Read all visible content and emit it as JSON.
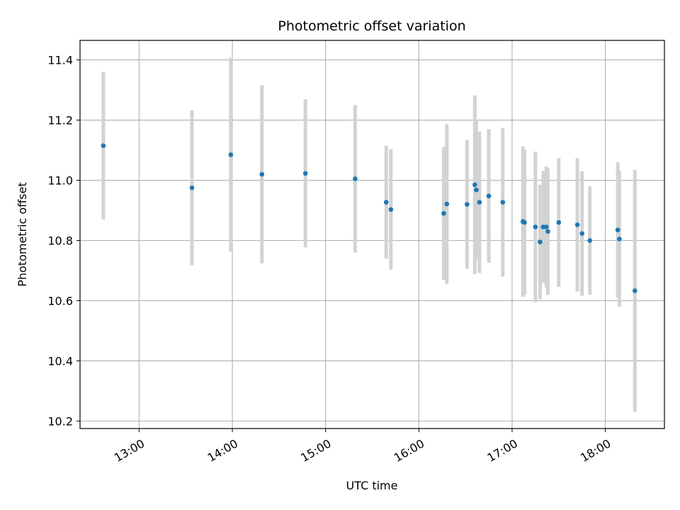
{
  "chart_data": {
    "type": "scatter",
    "title": "Photometric offset variation",
    "xlabel": "UTC time",
    "ylabel": "Photometric offset",
    "xlim": [
      "12:22",
      "18:38"
    ],
    "ylim": [
      10.175,
      11.465
    ],
    "x_ticks": [
      "13:00",
      "14:00",
      "15:00",
      "16:00",
      "17:00",
      "18:00"
    ],
    "y_ticks": [
      10.2,
      10.4,
      10.6,
      10.8,
      11.0,
      11.2,
      11.4
    ],
    "y_tick_labels": [
      "10.2",
      "10.4",
      "10.6",
      "10.8",
      "11.0",
      "11.2",
      "11.4"
    ],
    "grid": true,
    "colors": {
      "point": "#1f77b4",
      "errorbar": "#d3d3d3",
      "grid": "#b0b0b0"
    },
    "points": [
      {
        "x": "12:37",
        "y": 11.115,
        "err": 0.245
      },
      {
        "x": "13:34",
        "y": 10.975,
        "err": 0.258
      },
      {
        "x": "13:59",
        "y": 11.085,
        "err": 0.322
      },
      {
        "x": "14:19",
        "y": 11.02,
        "err": 0.296
      },
      {
        "x": "14:47",
        "y": 11.023,
        "err": 0.246
      },
      {
        "x": "15:19",
        "y": 11.005,
        "err": 0.245
      },
      {
        "x": "15:39",
        "y": 10.927,
        "err": 0.188
      },
      {
        "x": "15:42",
        "y": 10.903,
        "err": 0.2
      },
      {
        "x": "16:16",
        "y": 10.89,
        "err": 0.221
      },
      {
        "x": "16:18",
        "y": 10.921,
        "err": 0.266
      },
      {
        "x": "16:31",
        "y": 10.92,
        "err": 0.214
      },
      {
        "x": "16:36",
        "y": 10.985,
        "err": 0.297
      },
      {
        "x": "16:37",
        "y": 10.968,
        "err": 0.23
      },
      {
        "x": "16:39",
        "y": 10.927,
        "err": 0.235
      },
      {
        "x": "16:45",
        "y": 10.948,
        "err": 0.222
      },
      {
        "x": "16:54",
        "y": 10.927,
        "err": 0.247
      },
      {
        "x": "17:07",
        "y": 10.863,
        "err": 0.25
      },
      {
        "x": "17:08",
        "y": 10.86,
        "err": 0.241
      },
      {
        "x": "17:15",
        "y": 10.845,
        "err": 0.25
      },
      {
        "x": "17:18",
        "y": 10.795,
        "err": 0.19
      },
      {
        "x": "17:20",
        "y": 10.845,
        "err": 0.186
      },
      {
        "x": "17:22",
        "y": 10.845,
        "err": 0.2
      },
      {
        "x": "17:23",
        "y": 10.83,
        "err": 0.21
      },
      {
        "x": "17:30",
        "y": 10.86,
        "err": 0.214
      },
      {
        "x": "17:42",
        "y": 10.852,
        "err": 0.222
      },
      {
        "x": "17:45",
        "y": 10.823,
        "err": 0.207
      },
      {
        "x": "17:50",
        "y": 10.8,
        "err": 0.18
      },
      {
        "x": "18:08",
        "y": 10.835,
        "err": 0.225
      },
      {
        "x": "18:09",
        "y": 10.805,
        "err": 0.225
      },
      {
        "x": "18:19",
        "y": 10.633,
        "err": 0.402
      }
    ]
  }
}
